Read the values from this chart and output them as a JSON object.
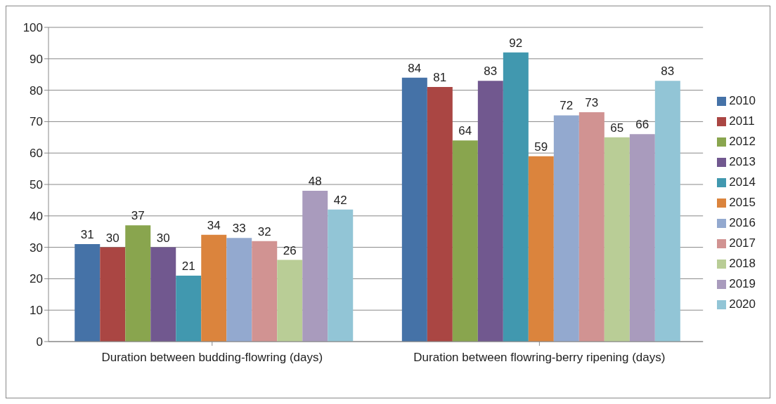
{
  "chart_data": {
    "type": "bar",
    "categories": [
      "Duration between budding-flowring (days)",
      "Duration between flowring-berry ripening (days)"
    ],
    "series": [
      {
        "name": "2010",
        "color": "#4572a7",
        "values": [
          31,
          84
        ]
      },
      {
        "name": "2011",
        "color": "#aa4643",
        "values": [
          30,
          81
        ]
      },
      {
        "name": "2012",
        "color": "#89a54e",
        "values": [
          37,
          64
        ]
      },
      {
        "name": "2013",
        "color": "#71588f",
        "values": [
          30,
          83
        ]
      },
      {
        "name": "2014",
        "color": "#4198af",
        "values": [
          21,
          92
        ]
      },
      {
        "name": "2015",
        "color": "#db843d",
        "values": [
          34,
          59
        ]
      },
      {
        "name": "2016",
        "color": "#93a9cf",
        "values": [
          33,
          72
        ]
      },
      {
        "name": "2017",
        "color": "#d19392",
        "values": [
          32,
          73
        ]
      },
      {
        "name": "2018",
        "color": "#b9cd96",
        "values": [
          26,
          65
        ]
      },
      {
        "name": "2019",
        "color": "#a99bbd",
        "values": [
          48,
          66
        ]
      },
      {
        "name": "2020",
        "color": "#92c5d6",
        "values": [
          42,
          83
        ]
      }
    ],
    "ylim": [
      0,
      100
    ],
    "yticks": [
      0,
      10,
      20,
      30,
      40,
      50,
      60,
      70,
      80,
      90,
      100
    ],
    "grid": "y",
    "legend": "right",
    "data_labels": true
  }
}
